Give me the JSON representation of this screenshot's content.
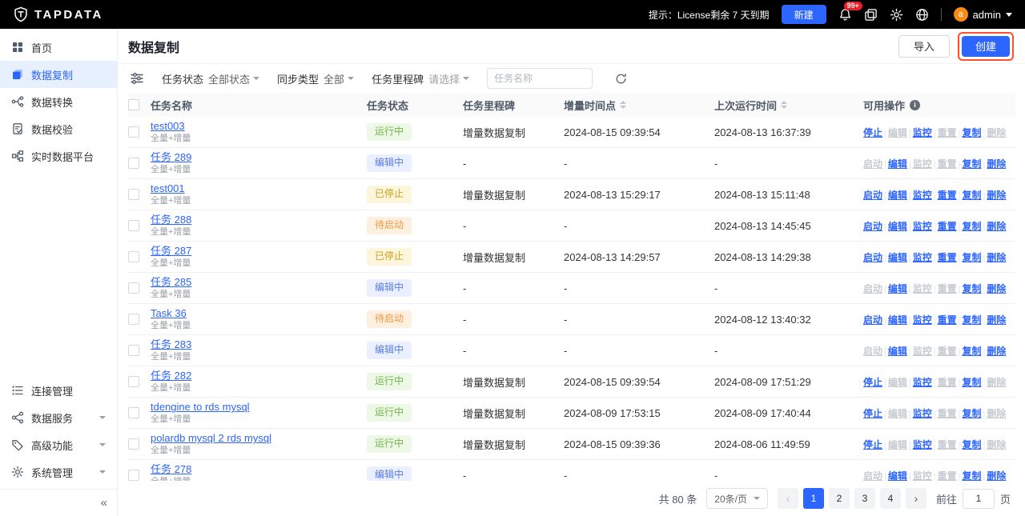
{
  "topbar": {
    "logo_text": "TAPDATA",
    "license_text": "提示：License剩余 7 天到期",
    "new_button": "新建",
    "notification_badge": "99+",
    "user": {
      "name": "admin",
      "avatar_letter": "a"
    }
  },
  "sidebar": {
    "items": [
      {
        "label": "首页"
      },
      {
        "label": "数据复制"
      },
      {
        "label": "数据转换"
      },
      {
        "label": "数据校验"
      },
      {
        "label": "实时数据平台"
      }
    ],
    "bottom_items": [
      {
        "label": "连接管理"
      },
      {
        "label": "数据服务"
      },
      {
        "label": "高级功能"
      },
      {
        "label": "系统管理"
      }
    ],
    "collapse_glyph": "«"
  },
  "page": {
    "title": "数据复制",
    "import_button": "导入",
    "create_button": "创建"
  },
  "filters": {
    "status_label": "任务状态",
    "status_value": "全部状态",
    "sync_label": "同步类型",
    "sync_value": "全部",
    "milestone_label": "任务里程碑",
    "milestone_value": "请选择",
    "search_placeholder": "任务名称"
  },
  "table": {
    "columns": [
      "任务名称",
      "任务状态",
      "任务里程碑",
      "增量时间点",
      "上次运行时间",
      "可用操作"
    ],
    "sub_label": "全量+增量",
    "rows": [
      {
        "name": "test003",
        "status": "运行中",
        "status_type": "running",
        "milestone": "增量数据复制",
        "incremental_time": "2024-08-15 09:39:54",
        "last_run_time": "2024-08-13 16:37:39",
        "actions": [
          {
            "label": "停止",
            "key": "stop",
            "enabled": true
          },
          {
            "label": "编辑",
            "key": "edit",
            "enabled": false
          },
          {
            "label": "监控",
            "key": "monitor",
            "enabled": true
          },
          {
            "label": "重置",
            "key": "reset",
            "enabled": false
          },
          {
            "label": "复制",
            "key": "copy",
            "enabled": true
          },
          {
            "label": "删除",
            "key": "delete",
            "enabled": false
          }
        ]
      },
      {
        "name": "任务 289",
        "status": "编辑中",
        "status_type": "editing",
        "milestone": "-",
        "incremental_time": "-",
        "last_run_time": "-",
        "actions": [
          {
            "label": "启动",
            "key": "start",
            "enabled": false
          },
          {
            "label": "编辑",
            "key": "edit",
            "enabled": true
          },
          {
            "label": "监控",
            "key": "monitor",
            "enabled": false
          },
          {
            "label": "重置",
            "key": "reset",
            "enabled": false
          },
          {
            "label": "复制",
            "key": "copy",
            "enabled": true
          },
          {
            "label": "删除",
            "key": "delete",
            "enabled": true
          }
        ]
      },
      {
        "name": "test001",
        "status": "已停止",
        "status_type": "stopped",
        "milestone": "增量数据复制",
        "incremental_time": "2024-08-13 15:29:17",
        "last_run_time": "2024-08-13 15:11:48",
        "actions": [
          {
            "label": "启动",
            "key": "start",
            "enabled": true
          },
          {
            "label": "编辑",
            "key": "edit",
            "enabled": true
          },
          {
            "label": "监控",
            "key": "monitor",
            "enabled": true
          },
          {
            "label": "重置",
            "key": "reset",
            "enabled": true
          },
          {
            "label": "复制",
            "key": "copy",
            "enabled": true
          },
          {
            "label": "删除",
            "key": "delete",
            "enabled": true
          }
        ]
      },
      {
        "name": "任务 288",
        "status": "待启动",
        "status_type": "waiting",
        "milestone": "-",
        "incremental_time": "-",
        "last_run_time": "2024-08-13 14:45:45",
        "actions": [
          {
            "label": "启动",
            "key": "start",
            "enabled": true
          },
          {
            "label": "编辑",
            "key": "edit",
            "enabled": true
          },
          {
            "label": "监控",
            "key": "monitor",
            "enabled": true
          },
          {
            "label": "重置",
            "key": "reset",
            "enabled": true
          },
          {
            "label": "复制",
            "key": "copy",
            "enabled": true
          },
          {
            "label": "删除",
            "key": "delete",
            "enabled": true
          }
        ]
      },
      {
        "name": "任务 287",
        "status": "已停止",
        "status_type": "stopped",
        "milestone": "增量数据复制",
        "incremental_time": "2024-08-13 14:29:57",
        "last_run_time": "2024-08-13 14:29:38",
        "actions": [
          {
            "label": "启动",
            "key": "start",
            "enabled": true
          },
          {
            "label": "编辑",
            "key": "edit",
            "enabled": true
          },
          {
            "label": "监控",
            "key": "monitor",
            "enabled": true
          },
          {
            "label": "重置",
            "key": "reset",
            "enabled": true
          },
          {
            "label": "复制",
            "key": "copy",
            "enabled": true
          },
          {
            "label": "删除",
            "key": "delete",
            "enabled": true
          }
        ]
      },
      {
        "name": "任务 285",
        "status": "编辑中",
        "status_type": "editing",
        "milestone": "-",
        "incremental_time": "-",
        "last_run_time": "-",
        "actions": [
          {
            "label": "启动",
            "key": "start",
            "enabled": false
          },
          {
            "label": "编辑",
            "key": "edit",
            "enabled": true
          },
          {
            "label": "监控",
            "key": "monitor",
            "enabled": false
          },
          {
            "label": "重置",
            "key": "reset",
            "enabled": false
          },
          {
            "label": "复制",
            "key": "copy",
            "enabled": true
          },
          {
            "label": "删除",
            "key": "delete",
            "enabled": true
          }
        ]
      },
      {
        "name": "Task 36",
        "status": "待启动",
        "status_type": "waiting",
        "milestone": "-",
        "incremental_time": "-",
        "last_run_time": "2024-08-12 13:40:32",
        "actions": [
          {
            "label": "启动",
            "key": "start",
            "enabled": true
          },
          {
            "label": "编辑",
            "key": "edit",
            "enabled": true
          },
          {
            "label": "监控",
            "key": "monitor",
            "enabled": true
          },
          {
            "label": "重置",
            "key": "reset",
            "enabled": true
          },
          {
            "label": "复制",
            "key": "copy",
            "enabled": true
          },
          {
            "label": "删除",
            "key": "delete",
            "enabled": true
          }
        ]
      },
      {
        "name": "任务 283",
        "status": "编辑中",
        "status_type": "editing",
        "milestone": "-",
        "incremental_time": "-",
        "last_run_time": "-",
        "actions": [
          {
            "label": "启动",
            "key": "start",
            "enabled": false
          },
          {
            "label": "编辑",
            "key": "edit",
            "enabled": true
          },
          {
            "label": "监控",
            "key": "monitor",
            "enabled": false
          },
          {
            "label": "重置",
            "key": "reset",
            "enabled": false
          },
          {
            "label": "复制",
            "key": "copy",
            "enabled": true
          },
          {
            "label": "删除",
            "key": "delete",
            "enabled": true
          }
        ]
      },
      {
        "name": "任务 282",
        "status": "运行中",
        "status_type": "running",
        "milestone": "增量数据复制",
        "incremental_time": "2024-08-15 09:39:54",
        "last_run_time": "2024-08-09 17:51:29",
        "actions": [
          {
            "label": "停止",
            "key": "stop",
            "enabled": true
          },
          {
            "label": "编辑",
            "key": "edit",
            "enabled": false
          },
          {
            "label": "监控",
            "key": "monitor",
            "enabled": true
          },
          {
            "label": "重置",
            "key": "reset",
            "enabled": false
          },
          {
            "label": "复制",
            "key": "copy",
            "enabled": true
          },
          {
            "label": "删除",
            "key": "delete",
            "enabled": false
          }
        ]
      },
      {
        "name": "tdengine to rds mysql",
        "status": "运行中",
        "status_type": "running",
        "milestone": "增量数据复制",
        "incremental_time": "2024-08-09 17:53:15",
        "last_run_time": "2024-08-09 17:40:44",
        "actions": [
          {
            "label": "停止",
            "key": "stop",
            "enabled": true
          },
          {
            "label": "编辑",
            "key": "edit",
            "enabled": false
          },
          {
            "label": "监控",
            "key": "monitor",
            "enabled": true
          },
          {
            "label": "重置",
            "key": "reset",
            "enabled": false
          },
          {
            "label": "复制",
            "key": "copy",
            "enabled": true
          },
          {
            "label": "删除",
            "key": "delete",
            "enabled": false
          }
        ]
      },
      {
        "name": "polardb mysql 2 rds mysql",
        "status": "运行中",
        "status_type": "running",
        "milestone": "增量数据复制",
        "incremental_time": "2024-08-15 09:39:36",
        "last_run_time": "2024-08-06 11:49:59",
        "actions": [
          {
            "label": "停止",
            "key": "stop",
            "enabled": true
          },
          {
            "label": "编辑",
            "key": "edit",
            "enabled": false
          },
          {
            "label": "监控",
            "key": "monitor",
            "enabled": true
          },
          {
            "label": "重置",
            "key": "reset",
            "enabled": false
          },
          {
            "label": "复制",
            "key": "copy",
            "enabled": true
          },
          {
            "label": "删除",
            "key": "delete",
            "enabled": false
          }
        ]
      },
      {
        "name": "任务 278",
        "status": "编辑中",
        "status_type": "editing",
        "milestone": "-",
        "incremental_time": "-",
        "last_run_time": "-",
        "actions": [
          {
            "label": "启动",
            "key": "start",
            "enabled": false
          },
          {
            "label": "编辑",
            "key": "edit",
            "enabled": true
          },
          {
            "label": "监控",
            "key": "monitor",
            "enabled": false
          },
          {
            "label": "重置",
            "key": "reset",
            "enabled": false
          },
          {
            "label": "复制",
            "key": "copy",
            "enabled": true
          },
          {
            "label": "删除",
            "key": "delete",
            "enabled": true
          }
        ]
      }
    ]
  },
  "pagination": {
    "total": "共 80 条",
    "page_size": "20条/页",
    "pages": [
      {
        "label": "1",
        "active": true
      },
      {
        "label": "2",
        "active": false
      },
      {
        "label": "3",
        "active": false
      },
      {
        "label": "4",
        "active": false
      }
    ],
    "prev_glyph": "‹",
    "next_glyph": "›",
    "goto_label": "前往",
    "goto_value": "1",
    "goto_unit": "页"
  },
  "colors": {
    "accent": "#2c65ff",
    "annotation_highlight": "#ff4f2e",
    "status_running": "#71b646",
    "status_editing": "#5c7ce6",
    "status_stopped": "#c9a21b",
    "status_waiting": "#f09a3e",
    "notification_red": "#f5222d",
    "avatar_orange": "#fa8c16"
  }
}
